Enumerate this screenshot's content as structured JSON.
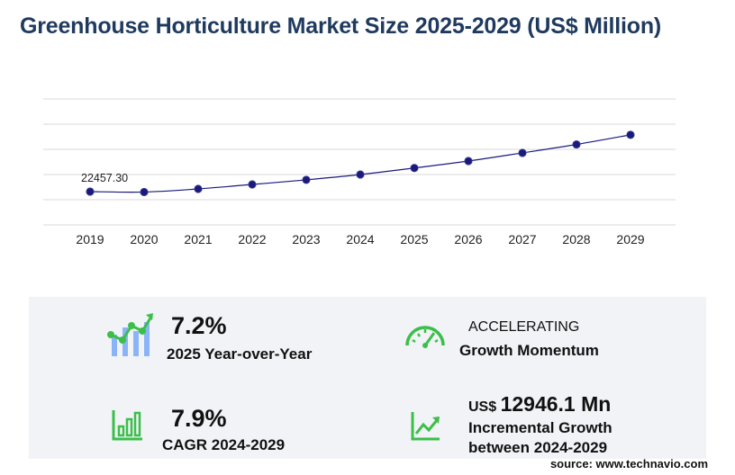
{
  "title": "Greenhouse Horticulture Market Size 2025-2029 (US$ Million)",
  "chart_data": {
    "type": "line",
    "title": "Greenhouse Horticulture Market Size 2025-2029 (US$ Million)",
    "x": [
      "2019",
      "2020",
      "2021",
      "2022",
      "2023",
      "2024",
      "2025",
      "2026",
      "2027",
      "2028",
      "2029"
    ],
    "series": [
      {
        "values": [
          22457.3,
          22190,
          24300,
          27300,
          30400,
          34000,
          38400,
          43100,
          48600,
          54300,
          60800
        ]
      }
    ],
    "annotations": [
      {
        "x": "2019",
        "text": "22457.30"
      }
    ],
    "ylim": [
      0,
      85000
    ],
    "grid": true,
    "line_color": "#1a1a7a"
  },
  "stats": {
    "yoy_value": "7.2%",
    "yoy_label": "2025 Year-over-Year",
    "momentum_line1": "ACCELERATING",
    "momentum_line2": "Growth Momentum",
    "cagr_value": "7.9%",
    "cagr_label": "CAGR 2024-2029",
    "incr_prefix": "US$",
    "incr_value": "12946.1 Mn",
    "incr_label_line1": "Incremental Growth",
    "incr_label_line2": "between 2024-2029"
  },
  "source": "source: www.technavio.com",
  "colors": {
    "title": "#1f3a5f",
    "accent_green": "#3bbf4a",
    "accent_blue": "#8ab4f8"
  }
}
